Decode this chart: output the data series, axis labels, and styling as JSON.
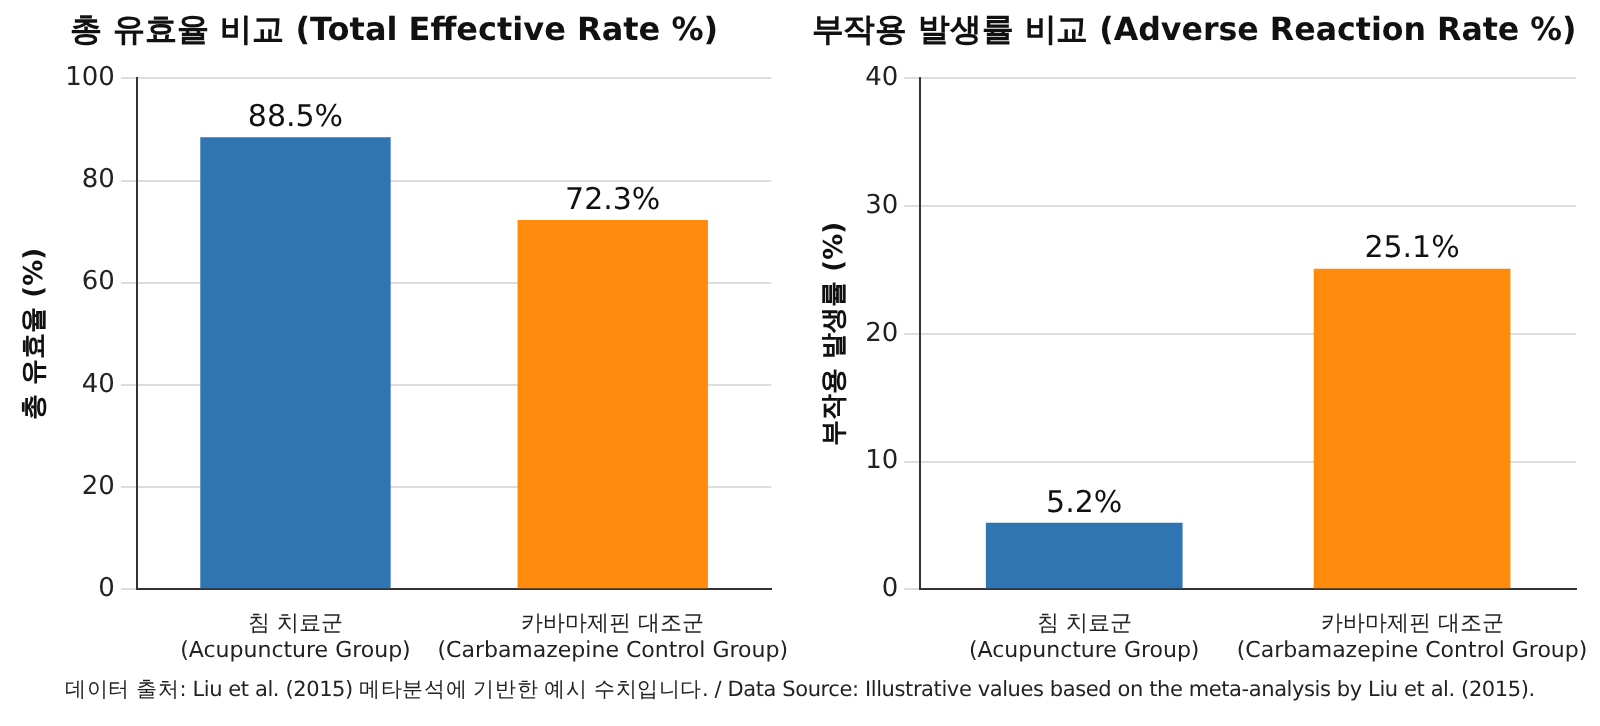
{
  "chart_data": [
    {
      "type": "bar",
      "title": "총 유효율 비교 (Total Effective Rate %)",
      "ylabel": "총 유효율 (%)",
      "categories": [
        "침 치료군\n(Acupuncture Group)",
        "카바마제핀 대조군\n(Carbamazepine Control Group)"
      ],
      "values": [
        88.5,
        72.3
      ],
      "colors": [
        "#2e75b2",
        "#ff8a0c"
      ],
      "value_labels": [
        "88.5%",
        "72.3%"
      ],
      "ylim": [
        0,
        100
      ],
      "yticks": [
        0,
        20,
        40,
        60,
        80,
        100
      ],
      "grid": "y",
      "legend": false,
      "annotations": [
        "데이터 출처: Liu et al. (2015) 메타분석에 기반한 예시 수치입니다. / Data Source: Illustrative values based on the meta-analysis by Liu et al. (2015)."
      ]
    },
    {
      "type": "bar",
      "title": "부작용 발생률 비교 (Adverse Reaction Rate %)",
      "ylabel": "부작용 발생률 (%)",
      "categories": [
        "침 치료군\n(Acupuncture Group)",
        "카바마제핀 대조군\n(Carbamazepine Control Group)"
      ],
      "values": [
        5.2,
        25.1
      ],
      "colors": [
        "#2e75b2",
        "#ff8a0c"
      ],
      "value_labels": [
        "5.2%",
        "25.1%"
      ],
      "ylim": [
        0,
        40
      ],
      "yticks": [
        0,
        10,
        20,
        30,
        40
      ],
      "grid": "y",
      "legend": false
    }
  ]
}
